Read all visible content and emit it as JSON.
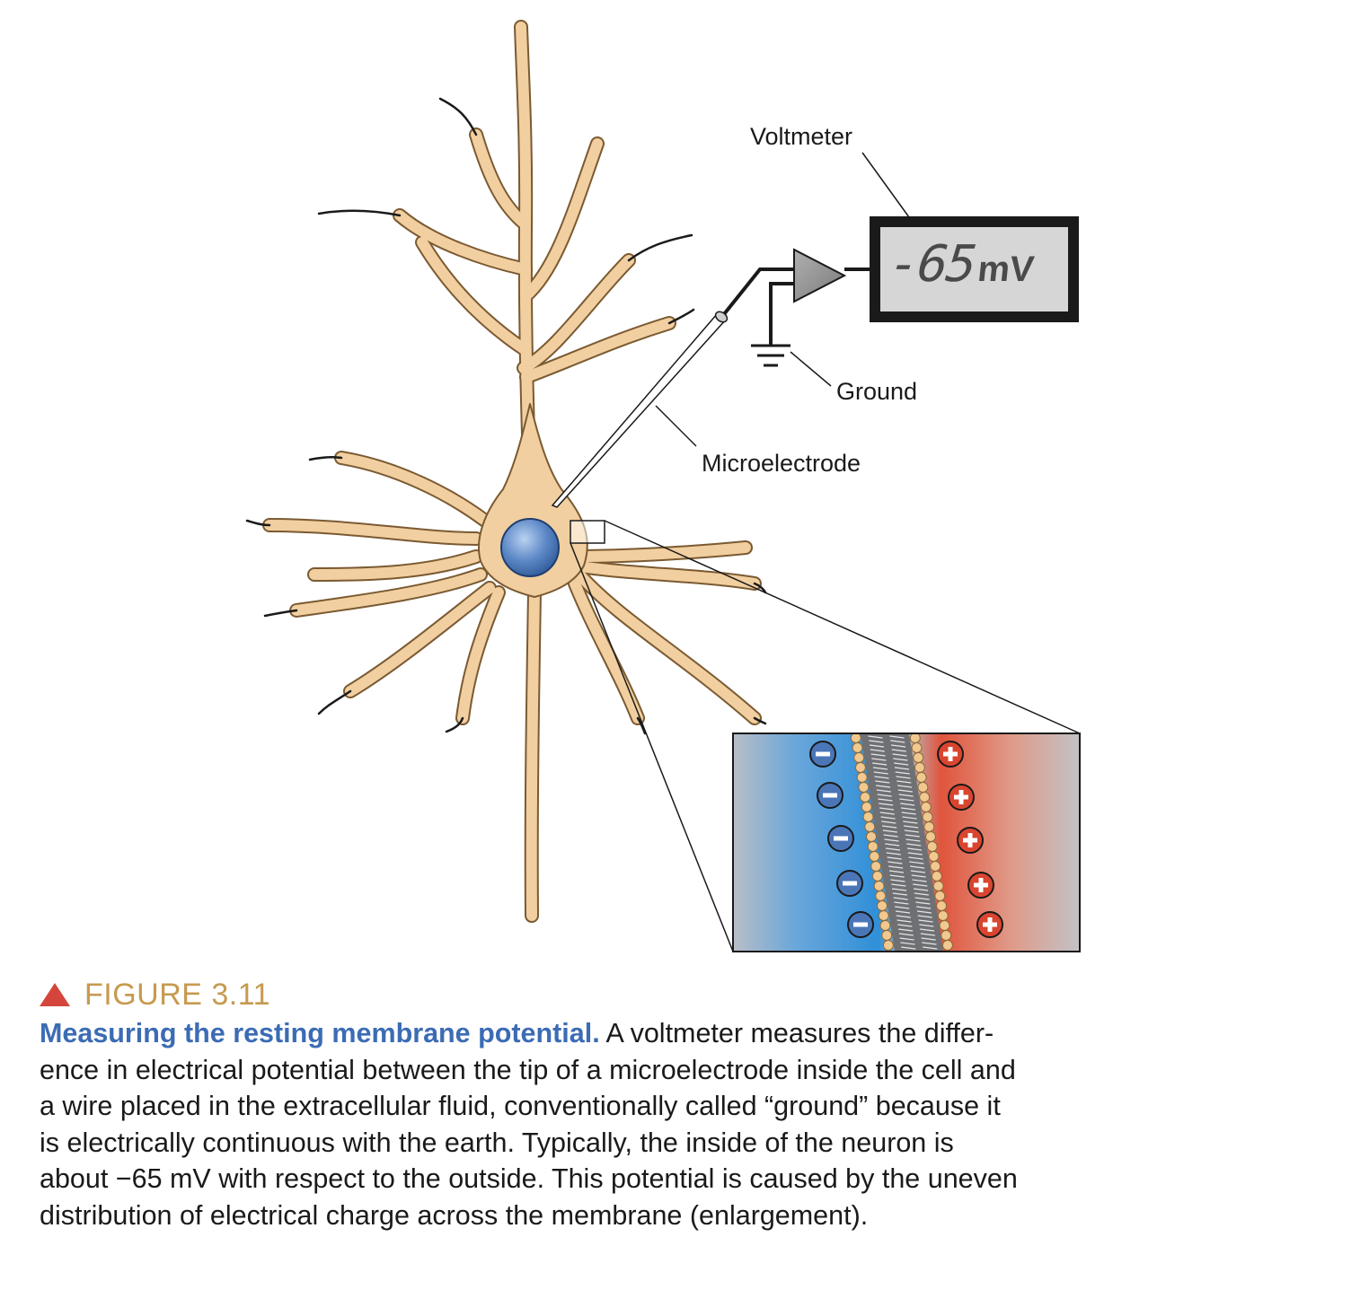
{
  "figure": {
    "labels": {
      "voltmeter": "Voltmeter",
      "ground": "Ground",
      "microelectrode": "Microelectrode"
    },
    "readout": {
      "value": "-65",
      "unit": "mV"
    },
    "inset": {
      "inside_charge": "−",
      "outside_charge": "+"
    },
    "colors": {
      "cell": "#f2cfa0",
      "nucleus": "#4a76b8",
      "inside": "#3a8fd2",
      "outside": "#d9452f",
      "label_accent": "#c69a4f",
      "title_accent": "#3b6cb4",
      "marker": "#d4463b"
    }
  },
  "caption": {
    "figure_label": "FIGURE 3.11",
    "title": "Measuring the resting membrane potential.",
    "lines": [
      " A voltmeter measures the differ-",
      "ence in electrical potential between the tip of a microelectrode inside the cell and",
      "a wire placed in the extracellular fluid, conventionally called “ground” because it",
      "is electrically continuous with the earth. Typically, the inside of the neuron is",
      "about −65 mV with respect to the outside. This potential is caused by the uneven",
      "distribution of electrical charge across the membrane (enlargement)."
    ]
  }
}
